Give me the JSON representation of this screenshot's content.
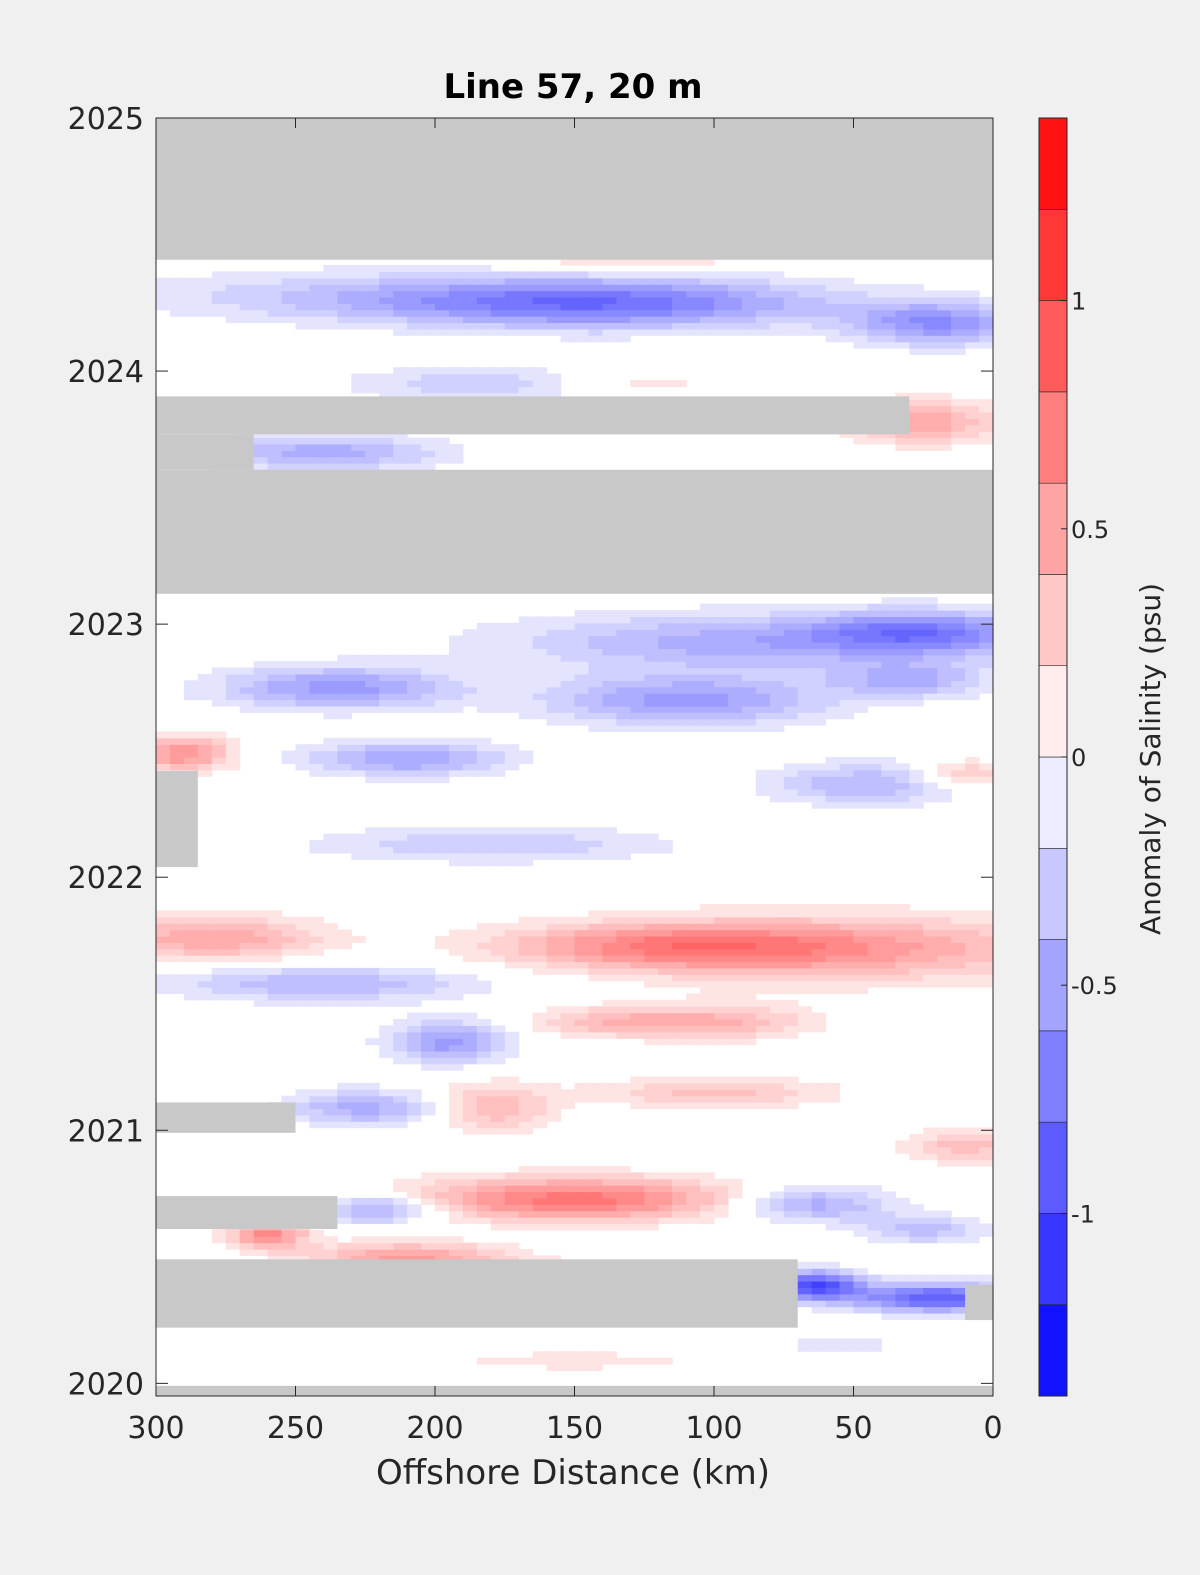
{
  "chart_data": {
    "type": "heatmap",
    "title": "Line 57, 20 m",
    "xlabel": "Offshore Distance (km)",
    "ylabel": "",
    "colorbar_label": "Anomaly of Salinity (psu)",
    "x_range": [
      300,
      0
    ],
    "x_direction": "reversed",
    "x_ticks": [
      300,
      250,
      200,
      150,
      100,
      50,
      0
    ],
    "y_range": [
      2019.95,
      2025.0
    ],
    "y_ticks": [
      2020,
      2021,
      2022,
      2023,
      2024,
      2025
    ],
    "colorbar_range": [
      -1.4,
      1.4
    ],
    "colorbar_step": 0.1,
    "colorbar_ticks": [
      {
        "value": 1,
        "label": "1"
      },
      {
        "value": 0.5,
        "label": "0.5"
      },
      {
        "value": 0,
        "label": "0"
      },
      {
        "value": -0.5,
        "label": "-0.5"
      },
      {
        "value": -1,
        "label": "-1"
      }
    ],
    "colormap": {
      "negative": "#0000ff",
      "zero": "#ffffff",
      "positive": "#ff0000"
    },
    "nodata_color": "#c8c8c8",
    "grid": false,
    "nodata_regions": [
      {
        "x0": 300,
        "x1": 0,
        "y0": 2024.44,
        "y1": 2025.0
      },
      {
        "x0": 300,
        "x1": 0,
        "y0": 2023.12,
        "y1": 2023.61
      },
      {
        "x0": 300,
        "x1": 30,
        "y0": 2023.75,
        "y1": 2023.9
      },
      {
        "x0": 300,
        "x1": 265,
        "y0": 2023.61,
        "y1": 2023.75
      },
      {
        "x0": 300,
        "x1": 285,
        "y0": 2022.04,
        "y1": 2022.42
      },
      {
        "x0": 300,
        "x1": 250,
        "y0": 2020.99,
        "y1": 2021.11
      },
      {
        "x0": 300,
        "x1": 235,
        "y0": 2020.61,
        "y1": 2020.74
      },
      {
        "x0": 300,
        "x1": 70,
        "y0": 2020.22,
        "y1": 2020.49
      },
      {
        "x0": 10,
        "x1": 0,
        "y0": 2020.25,
        "y1": 2020.39
      },
      {
        "x0": 300,
        "x1": 0,
        "y0": 2019.95,
        "y1": 2019.99
      }
    ],
    "anomaly_features": [
      {
        "x": 140,
        "y": 2024.27,
        "sx": 55,
        "sy": 0.07,
        "v": -0.75
      },
      {
        "x": 20,
        "y": 2024.19,
        "sx": 22,
        "sy": 0.06,
        "v": -0.6
      },
      {
        "x": 230,
        "y": 2024.3,
        "sx": 60,
        "sy": 0.07,
        "v": -0.25
      },
      {
        "x": 130,
        "y": 2024.43,
        "sx": 30,
        "sy": 0.03,
        "v": 0.25
      },
      {
        "x": 240,
        "y": 2023.68,
        "sx": 30,
        "sy": 0.05,
        "v": -0.45
      },
      {
        "x": 25,
        "y": 2023.8,
        "sx": 18,
        "sy": 0.06,
        "v": 0.5
      },
      {
        "x": 180,
        "y": 2023.95,
        "sx": 35,
        "sy": 0.05,
        "v": -0.3
      },
      {
        "x": 130,
        "y": 2023.95,
        "sx": 25,
        "sy": 0.04,
        "v": 0.2
      },
      {
        "x": 25,
        "y": 2022.97,
        "sx": 28,
        "sy": 0.06,
        "v": -0.6
      },
      {
        "x": 90,
        "y": 2022.93,
        "sx": 60,
        "sy": 0.08,
        "v": -0.45
      },
      {
        "x": 110,
        "y": 2022.7,
        "sx": 35,
        "sy": 0.07,
        "v": -0.55
      },
      {
        "x": 235,
        "y": 2022.75,
        "sx": 30,
        "sy": 0.06,
        "v": -0.55
      },
      {
        "x": 30,
        "y": 2022.78,
        "sx": 20,
        "sy": 0.05,
        "v": -0.4
      },
      {
        "x": 290,
        "y": 2022.49,
        "sx": 12,
        "sy": 0.05,
        "v": 0.6
      },
      {
        "x": 210,
        "y": 2022.47,
        "sx": 25,
        "sy": 0.05,
        "v": -0.5
      },
      {
        "x": 45,
        "y": 2022.37,
        "sx": 25,
        "sy": 0.06,
        "v": -0.4
      },
      {
        "x": 10,
        "y": 2022.41,
        "sx": 12,
        "sy": 0.04,
        "v": 0.35
      },
      {
        "x": 180,
        "y": 2022.13,
        "sx": 45,
        "sy": 0.05,
        "v": -0.3
      },
      {
        "x": 280,
        "y": 2021.76,
        "sx": 28,
        "sy": 0.06,
        "v": 0.5
      },
      {
        "x": 60,
        "y": 2021.72,
        "sx": 60,
        "sy": 0.09,
        "v": 0.55
      },
      {
        "x": 120,
        "y": 2021.73,
        "sx": 40,
        "sy": 0.06,
        "v": 0.45
      },
      {
        "x": 240,
        "y": 2021.58,
        "sx": 40,
        "sy": 0.05,
        "v": -0.4
      },
      {
        "x": 195,
        "y": 2021.35,
        "sx": 15,
        "sy": 0.06,
        "v": -0.55
      },
      {
        "x": 100,
        "y": 2021.43,
        "sx": 25,
        "sy": 0.05,
        "v": 0.4
      },
      {
        "x": 140,
        "y": 2021.43,
        "sx": 20,
        "sy": 0.04,
        "v": 0.3
      },
      {
        "x": 225,
        "y": 2021.09,
        "sx": 20,
        "sy": 0.05,
        "v": -0.45
      },
      {
        "x": 180,
        "y": 2021.09,
        "sx": 15,
        "sy": 0.07,
        "v": 0.4
      },
      {
        "x": 100,
        "y": 2021.15,
        "sx": 30,
        "sy": 0.04,
        "v": 0.35
      },
      {
        "x": 10,
        "y": 2020.94,
        "sx": 15,
        "sy": 0.05,
        "v": 0.35
      },
      {
        "x": 150,
        "y": 2020.73,
        "sx": 42,
        "sy": 0.06,
        "v": 0.75
      },
      {
        "x": 220,
        "y": 2020.69,
        "sx": 15,
        "sy": 0.04,
        "v": -0.55
      },
      {
        "x": 65,
        "y": 2020.71,
        "sx": 20,
        "sy": 0.05,
        "v": -0.5
      },
      {
        "x": 25,
        "y": 2020.61,
        "sx": 15,
        "sy": 0.04,
        "v": -0.35
      },
      {
        "x": 260,
        "y": 2020.59,
        "sx": 10,
        "sy": 0.04,
        "v": 0.65
      },
      {
        "x": 210,
        "y": 2020.5,
        "sx": 25,
        "sy": 0.04,
        "v": 0.55
      },
      {
        "x": 65,
        "y": 2020.39,
        "sx": 12,
        "sy": 0.04,
        "v": -1.05
      },
      {
        "x": 20,
        "y": 2020.34,
        "sx": 22,
        "sy": 0.04,
        "v": -0.9
      },
      {
        "x": 130,
        "y": 2020.4,
        "sx": 35,
        "sy": 0.05,
        "v": 0.35
      },
      {
        "x": 150,
        "y": 2020.09,
        "sx": 40,
        "sy": 0.03,
        "v": 0.15
      },
      {
        "x": 55,
        "y": 2020.15,
        "sx": 20,
        "sy": 0.03,
        "v": -0.15
      }
    ]
  }
}
